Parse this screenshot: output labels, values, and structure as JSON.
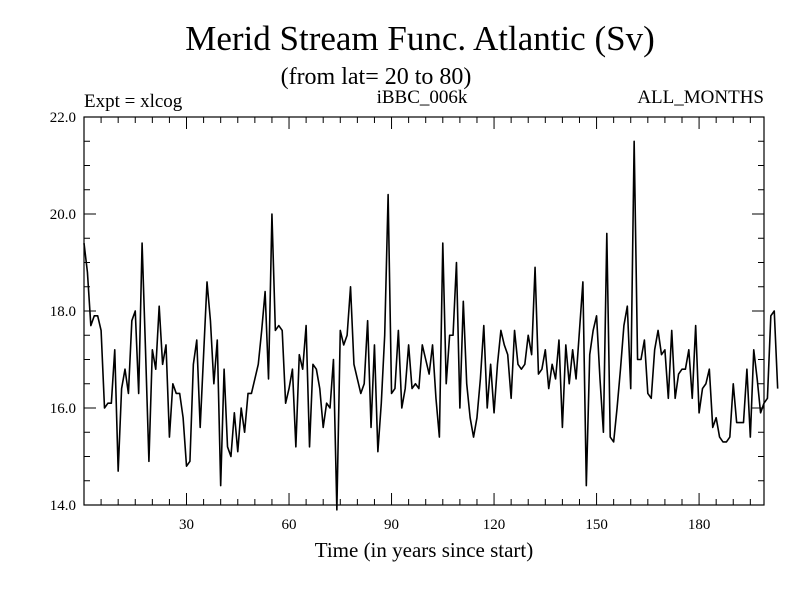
{
  "chart_data": {
    "type": "line",
    "title": "Merid Stream Func. Atlantic (Sv)",
    "subtitle": "(from lat= 20 to 80)",
    "experiment_label": "Expt = xlcog",
    "run_label": "iBBC_006k",
    "months_label": "ALL_MONTHS",
    "xlabel": "Time (in years since start)",
    "ylabel": "",
    "xlim": [
      0,
      199
    ],
    "ylim": [
      14.0,
      22.0
    ],
    "x_ticks": [
      30,
      60,
      90,
      120,
      150,
      180
    ],
    "y_ticks": [
      14.0,
      16.0,
      18.0,
      20.0,
      22.0
    ],
    "y_tick_labels": [
      "14.0",
      "16.0",
      "18.0",
      "20.0",
      "22.0"
    ],
    "series": [
      {
        "name": "Merid Stream Func. Atlantic",
        "color": "#000000",
        "x_start": 0,
        "x_step": 1,
        "values": [
          19.4,
          18.8,
          17.7,
          17.9,
          17.9,
          17.6,
          16.0,
          16.1,
          16.1,
          17.2,
          14.7,
          16.4,
          16.8,
          16.3,
          17.8,
          18.0,
          16.3,
          19.4,
          17.2,
          14.9,
          17.2,
          16.8,
          18.1,
          16.9,
          17.3,
          15.4,
          16.5,
          16.3,
          16.3,
          15.8,
          14.8,
          14.9,
          16.9,
          17.4,
          15.6,
          17.1,
          18.6,
          17.8,
          16.5,
          17.4,
          14.4,
          16.8,
          15.2,
          15.0,
          15.9,
          15.1,
          16.0,
          15.5,
          16.3,
          16.3,
          16.6,
          16.9,
          17.6,
          18.4,
          16.6,
          20.0,
          17.6,
          17.7,
          17.6,
          16.1,
          16.4,
          16.8,
          15.2,
          17.1,
          16.8,
          17.7,
          15.2,
          16.9,
          16.8,
          16.4,
          15.6,
          16.1,
          16.0,
          17.0,
          13.9,
          17.6,
          17.3,
          17.5,
          18.5,
          16.9,
          16.6,
          16.3,
          16.5,
          17.8,
          15.6,
          17.3,
          15.1,
          16.1,
          17.5,
          20.4,
          16.3,
          16.4,
          17.6,
          16.0,
          16.4,
          17.3,
          16.4,
          16.5,
          16.4,
          17.3,
          17.0,
          16.7,
          17.3,
          16.2,
          15.4,
          19.4,
          16.5,
          17.5,
          17.5,
          19.0,
          16.0,
          18.2,
          16.5,
          15.8,
          15.4,
          15.8,
          16.6,
          17.7,
          16.0,
          16.9,
          15.9,
          16.9,
          17.6,
          17.3,
          17.1,
          16.2,
          17.6,
          16.9,
          16.8,
          16.9,
          17.5,
          17.1,
          18.9,
          16.7,
          16.8,
          17.2,
          16.4,
          16.9,
          16.6,
          17.4,
          15.6,
          17.3,
          16.5,
          17.2,
          16.6,
          17.6,
          18.6,
          14.4,
          17.1,
          17.6,
          17.9,
          16.6,
          15.5,
          19.6,
          15.4,
          15.3,
          16.0,
          16.8,
          17.7,
          18.1,
          16.4,
          21.5,
          17.0,
          17.0,
          17.4,
          16.3,
          16.2,
          17.2,
          17.6,
          17.1,
          17.2,
          16.2,
          17.6,
          16.2,
          16.7,
          16.8,
          16.8,
          17.2,
          16.2,
          17.7,
          15.9,
          16.4,
          16.5,
          16.8,
          15.6,
          15.8,
          15.4,
          15.3,
          15.3,
          15.4,
          16.5,
          15.7,
          15.7,
          15.7,
          16.8,
          15.4,
          17.2,
          16.6,
          15.9,
          16.1,
          16.2,
          17.9,
          18.0,
          16.4
        ]
      }
    ]
  }
}
